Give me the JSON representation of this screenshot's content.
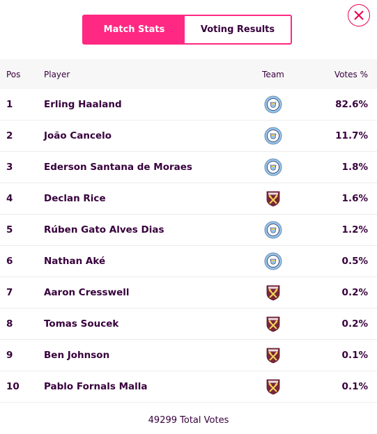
{
  "tabs": {
    "match_stats": "Match Stats",
    "voting_results": "Voting Results"
  },
  "table": {
    "headers": {
      "pos": "Pos",
      "player": "Player",
      "team": "Team",
      "votes": "Votes %"
    },
    "rows": [
      {
        "pos": "1",
        "player": "Erling Haaland",
        "team": "man-city-badge-icon",
        "votes": "82.6%"
      },
      {
        "pos": "2",
        "player": "João Cancelo",
        "team": "man-city-badge-icon",
        "votes": "11.7%"
      },
      {
        "pos": "3",
        "player": "Ederson Santana de Moraes",
        "team": "man-city-badge-icon",
        "votes": "1.8%"
      },
      {
        "pos": "4",
        "player": "Declan Rice",
        "team": "west-ham-badge-icon",
        "votes": "1.6%"
      },
      {
        "pos": "5",
        "player": "Rúben Gato Alves Dias",
        "team": "man-city-badge-icon",
        "votes": "1.2%"
      },
      {
        "pos": "6",
        "player": "Nathan Aké",
        "team": "man-city-badge-icon",
        "votes": "0.5%"
      },
      {
        "pos": "7",
        "player": "Aaron Cresswell",
        "team": "west-ham-badge-icon",
        "votes": "0.2%"
      },
      {
        "pos": "8",
        "player": "Tomas Soucek",
        "team": "west-ham-badge-icon",
        "votes": "0.2%"
      },
      {
        "pos": "9",
        "player": "Ben Johnson",
        "team": "west-ham-badge-icon",
        "votes": "0.1%"
      },
      {
        "pos": "10",
        "player": "Pablo Fornals Malla",
        "team": "west-ham-badge-icon",
        "votes": "0.1%"
      }
    ]
  },
  "footer": {
    "total_votes": "49299 Total Votes"
  },
  "colors": {
    "accent": "#ff2882",
    "close": "#e90052",
    "text": "#37003c",
    "header_bg": "#f7f7f7"
  },
  "icons": {
    "close": "close-icon"
  }
}
